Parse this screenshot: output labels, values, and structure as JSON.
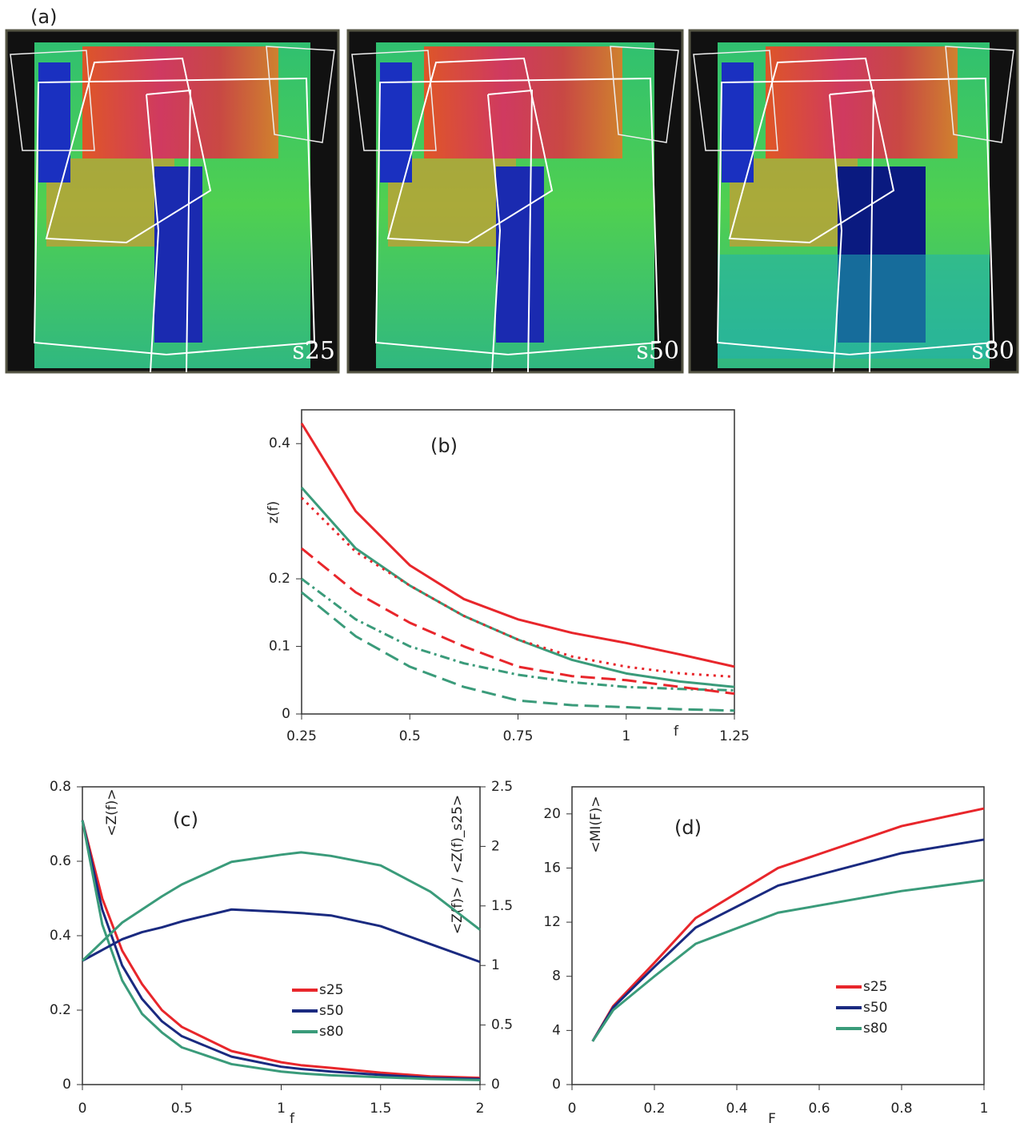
{
  "heatmaps": {
    "label": "(a)",
    "panels": [
      {
        "label": "s25"
      },
      {
        "label": "s50"
      },
      {
        "label": "s80"
      }
    ]
  },
  "chart_data": [
    {
      "type": "line",
      "title": "(b)",
      "y_label": "z(f)",
      "x_label": "f",
      "x": [
        0.25,
        0.375,
        0.5,
        0.625,
        0.75,
        0.875,
        1,
        1.125,
        1.25
      ],
      "xlim": [
        0.25,
        1.25
      ],
      "xticks": [
        0.25,
        0.5,
        0.75,
        1,
        1.25
      ],
      "ylim": [
        0,
        0.45
      ],
      "yticks": [
        0,
        0.1,
        0.2,
        0.4
      ],
      "series": [
        {
          "color": "#e8262b",
          "dash": "solid",
          "values": [
            0.43,
            0.3,
            0.22,
            0.17,
            0.14,
            0.12,
            0.105,
            0.088,
            0.07
          ]
        },
        {
          "color": "#3a9b7a",
          "dash": "solid",
          "values": [
            0.335,
            0.245,
            0.19,
            0.145,
            0.11,
            0.08,
            0.06,
            0.048,
            0.04
          ]
        },
        {
          "color": "#e8262b",
          "dash": "dotted",
          "values": [
            0.32,
            0.24,
            0.19,
            0.145,
            0.11,
            0.085,
            0.07,
            0.06,
            0.055
          ]
        },
        {
          "color": "#3a9b7a",
          "dash": "dashdot",
          "values": [
            0.2,
            0.14,
            0.1,
            0.075,
            0.058,
            0.047,
            0.04,
            0.037,
            0.035
          ]
        },
        {
          "color": "#e8262b",
          "dash": "dashed",
          "values": [
            0.245,
            0.18,
            0.135,
            0.1,
            0.07,
            0.056,
            0.05,
            0.04,
            0.03
          ]
        },
        {
          "color": "#3a9b7a",
          "dash": "dashed",
          "values": [
            0.18,
            0.115,
            0.07,
            0.04,
            0.02,
            0.013,
            0.01,
            0.007,
            0.005
          ]
        }
      ]
    },
    {
      "type": "line",
      "title": "(c)",
      "y_label": "<Z(f)>",
      "y2_label": "<Z(f)> / <Z(f)_s25>",
      "x_label": "f",
      "x": [
        0,
        0.1,
        0.2,
        0.3,
        0.4,
        0.5,
        0.75,
        1,
        1.1,
        1.25,
        1.5,
        1.75,
        2
      ],
      "xlim": [
        0,
        2
      ],
      "xticks": [
        0,
        0.5,
        1,
        1.5,
        2
      ],
      "ylim": [
        0,
        0.8
      ],
      "yticks": [
        0,
        0.2,
        0.4,
        0.6,
        0.8
      ],
      "y2lim": [
        0,
        2.5
      ],
      "y2ticks": [
        0,
        0.5,
        1,
        1.5,
        2,
        2.5
      ],
      "series": [
        {
          "name": "s25",
          "color": "#e8262b",
          "values": [
            0.71,
            0.5,
            0.36,
            0.27,
            0.2,
            0.155,
            0.09,
            0.06,
            0.052,
            0.045,
            0.032,
            0.022,
            0.018
          ]
        },
        {
          "name": "s50",
          "color": "#1a2a80",
          "values": [
            0.71,
            0.47,
            0.32,
            0.23,
            0.17,
            0.13,
            0.075,
            0.048,
            0.042,
            0.035,
            0.026,
            0.018,
            0.015
          ]
        },
        {
          "name": "s80",
          "color": "#3a9b7a",
          "values": [
            0.71,
            0.43,
            0.28,
            0.19,
            0.14,
            0.1,
            0.055,
            0.035,
            0.03,
            0.025,
            0.02,
            0.015,
            0.012
          ]
        },
        {
          "color": "#1a2a80",
          "axis": "y2",
          "values": [
            1.04,
            1.13,
            1.22,
            1.28,
            1.32,
            1.37,
            1.47,
            1.45,
            1.44,
            1.42,
            1.33,
            1.18,
            1.03
          ]
        },
        {
          "color": "#3a9b7a",
          "axis": "y2",
          "values": [
            1.04,
            1.2,
            1.36,
            1.47,
            1.58,
            1.68,
            1.87,
            1.93,
            1.95,
            1.92,
            1.84,
            1.62,
            1.3
          ]
        }
      ]
    },
    {
      "type": "line",
      "title": "(d)",
      "y_label": "<MI(F)>",
      "x_label": "F",
      "x": [
        0.05,
        0.1,
        0.2,
        0.3,
        0.5,
        0.8,
        1
      ],
      "xlim": [
        0,
        1
      ],
      "xticks": [
        0,
        0.2,
        0.4,
        0.6,
        0.8,
        1
      ],
      "ylim": [
        0,
        22
      ],
      "yticks": [
        0,
        4,
        8,
        12,
        16,
        20
      ],
      "series": [
        {
          "name": "s25",
          "color": "#e8262b",
          "values": [
            3.2,
            5.8,
            9.0,
            12.3,
            16.0,
            19.1,
            20.4
          ]
        },
        {
          "name": "s50",
          "color": "#1a2a80",
          "values": [
            3.2,
            5.7,
            8.7,
            11.6,
            14.7,
            17.1,
            18.1
          ]
        },
        {
          "name": "s80",
          "color": "#3a9b7a",
          "values": [
            3.2,
            5.5,
            8.0,
            10.4,
            12.7,
            14.3,
            15.1
          ]
        }
      ]
    }
  ]
}
